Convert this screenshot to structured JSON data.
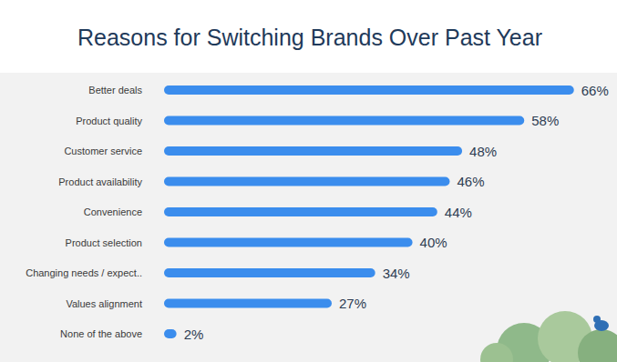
{
  "chart_data": {
    "type": "bar",
    "title": "Reasons for Switching Brands Over Past Year",
    "orientation": "horizontal",
    "categories": [
      "Better deals",
      "Product quality",
      "Customer service",
      "Product availability",
      "Convenience",
      "Product selection",
      "Changing needs / expect..",
      "Values alignment",
      "None of the above"
    ],
    "values": [
      66,
      58,
      48,
      46,
      44,
      40,
      34,
      27,
      2
    ],
    "value_labels": [
      "66%",
      "58%",
      "48%",
      "46%",
      "44%",
      "40%",
      "34%",
      "27%",
      "2%"
    ],
    "color": "#3b8ded",
    "xlim": [
      0,
      70
    ],
    "data_labels": true,
    "tick_labels": false,
    "grid": false
  }
}
